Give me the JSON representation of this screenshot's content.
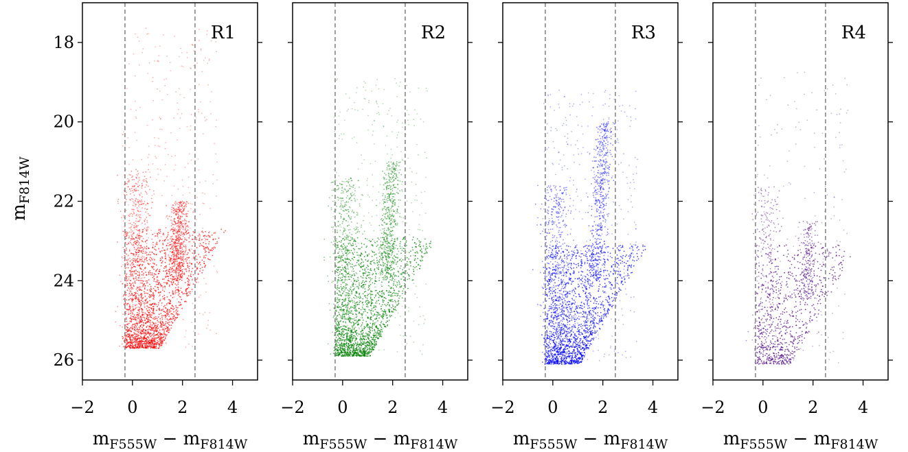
{
  "chart_data": {
    "type": "scatter",
    "layout": "1x4 panels, shared y-axis",
    "ylabel": {
      "base": "m",
      "sub": "F814W"
    },
    "xlabel": {
      "base1": "m",
      "sub1": "F555W",
      "op": "−",
      "base2": "m",
      "sub2": "F814W"
    },
    "xlim": [
      -2,
      5
    ],
    "ylim": [
      26.5,
      17.0
    ],
    "y_inverted": true,
    "xticks": [
      -2,
      0,
      2,
      4
    ],
    "xtick_labels": [
      "−2",
      "0",
      "2",
      "4"
    ],
    "yticks": [
      18,
      20,
      22,
      24,
      26
    ],
    "ytick_labels": [
      "18",
      "20",
      "22",
      "24",
      "26"
    ],
    "vlines": [
      -0.3,
      2.5
    ],
    "vline_style": "dashed grey",
    "grid": false,
    "panels": [
      {
        "label": "R1",
        "color": "#ff0000",
        "density": 1.0,
        "mag_limit": 25.7,
        "features": {
          "main_sequence_x": [
            0.0,
            1.0
          ],
          "red_clump_y": [
            22.0,
            24.0
          ],
          "rgb_tip_y": 17.6
        }
      },
      {
        "label": "R2",
        "color": "#008000",
        "density": 1.0,
        "mag_limit": 25.9,
        "features": {
          "main_sequence_x": [
            -0.2,
            1.2
          ],
          "red_clump_y": [
            21.0,
            24.0
          ],
          "rgb_tip_y": 18.9
        }
      },
      {
        "label": "R3",
        "color": "#0000ff",
        "density": 1.0,
        "mag_limit": 26.1,
        "features": {
          "main_sequence_x": [
            -0.3,
            1.1
          ],
          "red_clump_y": [
            20.0,
            24.0
          ],
          "rgb_tip_y": 19.2
        }
      },
      {
        "label": "R4",
        "color": "#4b0082",
        "density": 0.45,
        "mag_limit": 26.1,
        "features": {
          "main_sequence_x": [
            0.0,
            1.0
          ],
          "red_clump_y": [
            22.5,
            24.5
          ],
          "rgb_tip_y": 18.7
        }
      }
    ]
  }
}
